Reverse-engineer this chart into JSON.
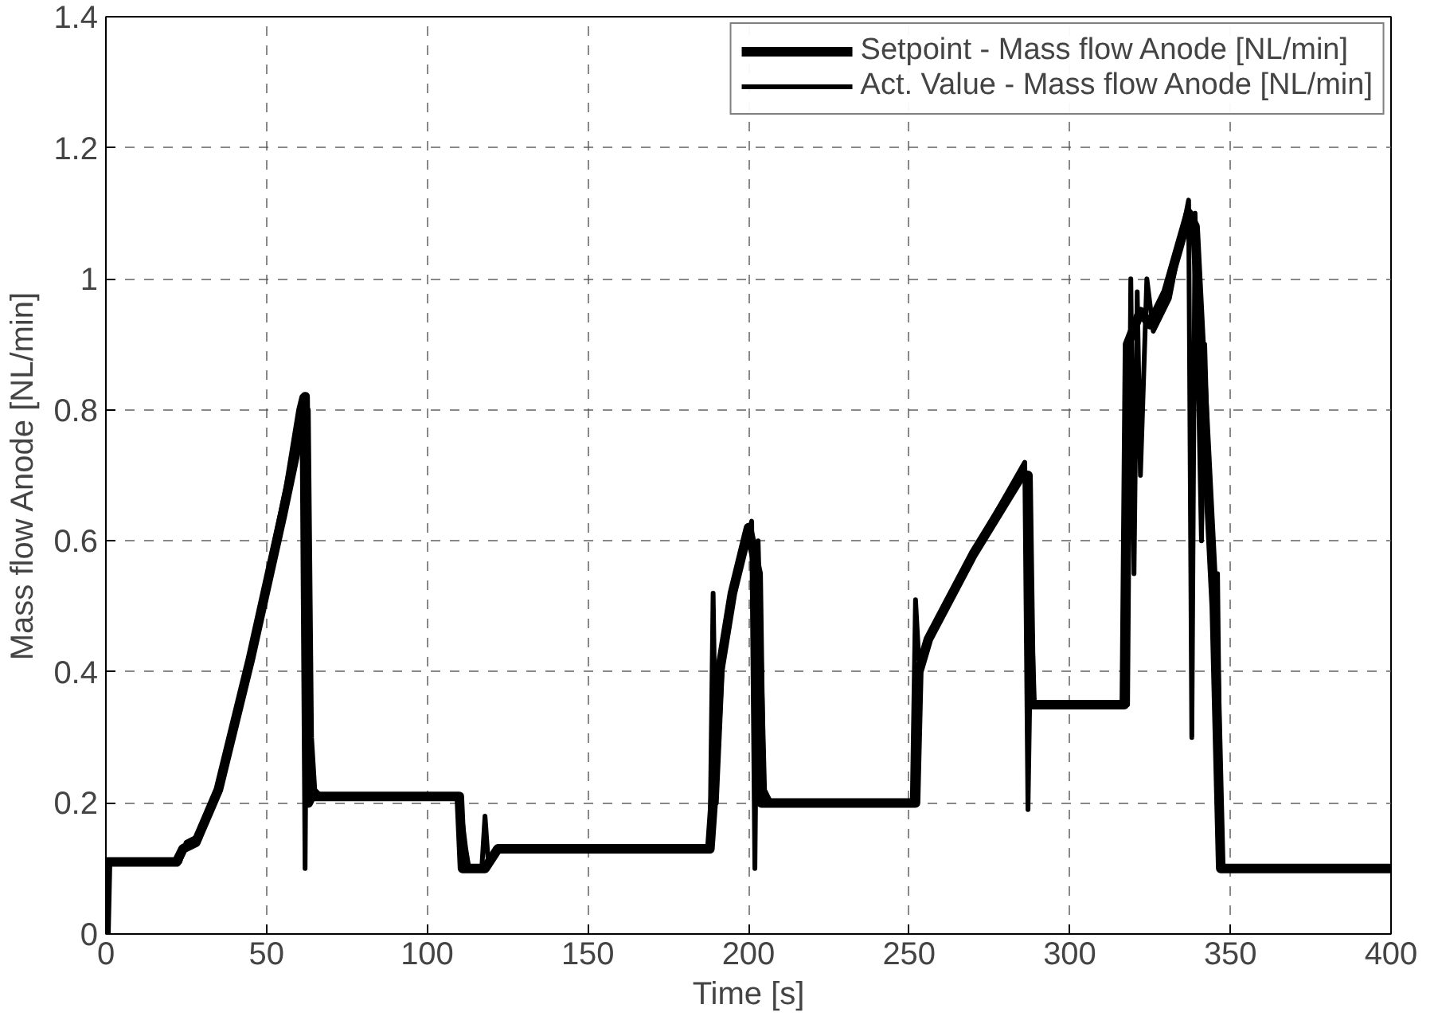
{
  "chart_data": {
    "type": "line",
    "xlabel": "Time [s]",
    "ylabel": "Mass flow Anode [NL/min]",
    "xlim": [
      0,
      400
    ],
    "ylim": [
      0,
      1.4
    ],
    "xticks": [
      0,
      50,
      100,
      150,
      200,
      250,
      300,
      350,
      400
    ],
    "yticks": [
      0,
      0.2,
      0.4,
      0.6,
      0.8,
      1,
      1.2,
      1.4
    ],
    "grid": true,
    "legend": "top right",
    "marker": "none",
    "line_style": "solid",
    "series": [
      {
        "name": "Setpoint - Mass flow Anode [NL/min]",
        "color": "#000000",
        "x": [
          0,
          0.5,
          22,
          24,
          28,
          35,
          45,
          55,
          61,
          62,
          63,
          64,
          110,
          111,
          118,
          122,
          188,
          189,
          191,
          195,
          200,
          203,
          204,
          252,
          253,
          256,
          270,
          285,
          287,
          288,
          317,
          318,
          322,
          325,
          330,
          337,
          339,
          345,
          347,
          400
        ],
        "values": [
          0,
          0.11,
          0.11,
          0.13,
          0.14,
          0.22,
          0.42,
          0.64,
          0.78,
          0.82,
          0.2,
          0.21,
          0.21,
          0.1,
          0.1,
          0.13,
          0.13,
          0.2,
          0.4,
          0.52,
          0.62,
          0.55,
          0.2,
          0.2,
          0.4,
          0.45,
          0.58,
          0.7,
          0.7,
          0.35,
          0.35,
          0.9,
          0.95,
          0.93,
          0.98,
          1.1,
          1.08,
          0.5,
          0.1,
          0.1
        ]
      },
      {
        "name": "Act. Value - Mass flow Anode [NL/min]",
        "color": "#000000",
        "x": [
          0,
          1,
          23,
          25,
          29,
          36,
          46,
          56,
          60,
          61,
          62,
          63,
          64,
          65,
          67,
          110,
          112,
          113,
          117,
          118,
          119,
          123,
          188,
          189,
          190,
          192,
          196,
          201,
          202,
          203,
          205,
          207,
          251,
          252,
          253,
          258,
          272,
          286,
          287,
          288,
          289,
          318,
          319,
          320,
          321,
          322,
          324,
          326,
          331,
          337,
          338,
          339,
          341,
          342,
          344,
          346,
          347,
          400
        ],
        "values": [
          0,
          0.11,
          0.11,
          0.14,
          0.15,
          0.24,
          0.45,
          0.68,
          0.8,
          0.82,
          0.1,
          0.8,
          0.3,
          0.22,
          0.21,
          0.21,
          0.13,
          0.1,
          0.1,
          0.18,
          0.11,
          0.13,
          0.13,
          0.52,
          0.2,
          0.42,
          0.54,
          0.63,
          0.1,
          0.6,
          0.22,
          0.2,
          0.2,
          0.51,
          0.42,
          0.47,
          0.6,
          0.72,
          0.19,
          0.5,
          0.35,
          0.35,
          1.0,
          0.55,
          0.98,
          0.7,
          1.0,
          0.92,
          0.97,
          1.12,
          0.3,
          1.1,
          0.6,
          0.9,
          0.55,
          0.55,
          0.1,
          0.1
        ]
      }
    ]
  }
}
